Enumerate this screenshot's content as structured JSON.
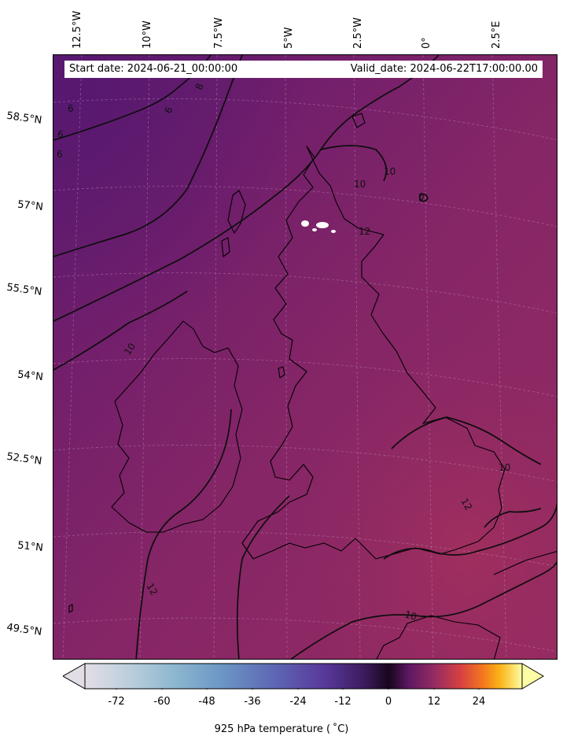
{
  "header": {
    "start_date": "Start date: 2024-06-21_00:00:00",
    "valid_date": "Valid_date: 2024-06-22T17:00:00.00"
  },
  "longitude_labels": [
    "12.5°W",
    "10°W",
    "7.5°W",
    "5°W",
    "2.5°W",
    "0°",
    "2.5°E"
  ],
  "latitude_labels": [
    "58.5°N",
    "57°N",
    "55.5°N",
    "54°N",
    "52.5°N",
    "51°N",
    "49.5°N"
  ],
  "contour_labels": [
    "6",
    "6",
    "6",
    "6",
    "8",
    "10",
    "10",
    "10",
    "10",
    "10",
    "12",
    "12",
    "12",
    "10",
    "0",
    "10"
  ],
  "colorbar": {
    "ticks": [
      "-72",
      "-60",
      "-48",
      "-36",
      "-24",
      "-12",
      "0",
      "12",
      "24"
    ],
    "label": "925 hPa temperature ($^\\circ$C)",
    "label_display": "925 hPa temperature ( ˚C)",
    "extend": "both",
    "colors": [
      "#e3dde6",
      "#a4c5d6",
      "#6a9cc4",
      "#5c69b4",
      "#5b3d9c",
      "#3a1b5a",
      "#1a0620",
      "#6a1a5c",
      "#b0304f",
      "#e8592c",
      "#f9a21c",
      "#fdfa9c"
    ]
  },
  "map": {
    "field_colors": {
      "cold_northwest": "#601a6e",
      "mid": "#7d2467",
      "warm_south": "#962b62"
    }
  }
}
